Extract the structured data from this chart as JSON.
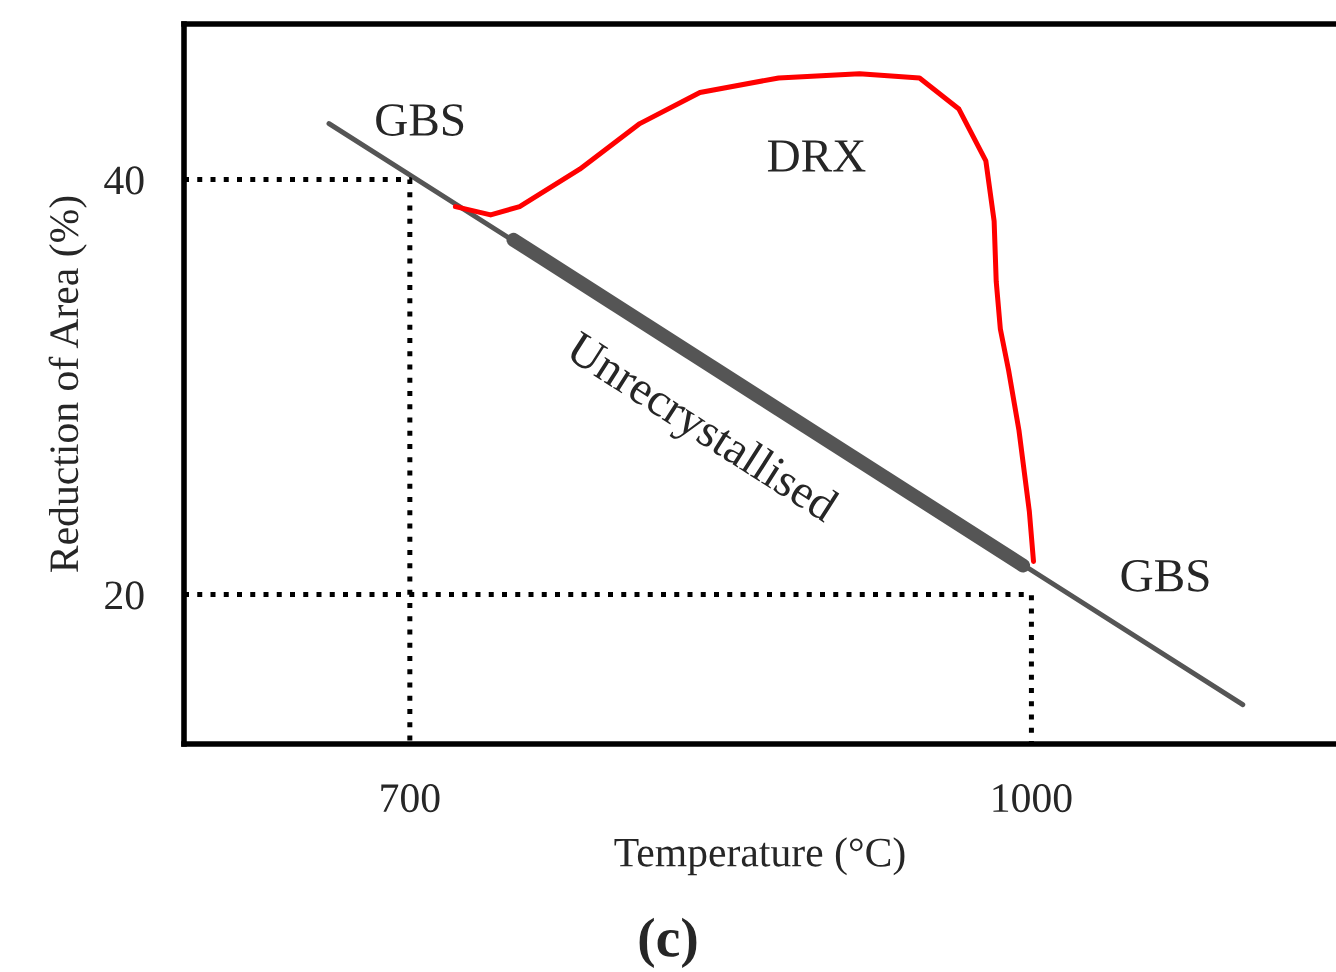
{
  "chart_data": {
    "type": "line",
    "xlabel": "Temperature (°C)",
    "ylabel": "Reduction of Area (%)",
    "xlim": [
      591,
      1147
    ],
    "ylim": [
      12.8,
      47.5
    ],
    "xticks": [
      700,
      1000
    ],
    "yticks": [
      20,
      40
    ],
    "grid": false,
    "legend": false,
    "series": [
      {
        "color": "#555555",
        "line_style": "solid",
        "x": [
          661,
          1102
        ],
        "values": [
          42.7,
          14.7
        ]
      },
      {
        "color": "#555555",
        "line_style": "solid",
        "x": [
          750,
          996
        ],
        "values": [
          37.1,
          21.4
        ]
      },
      {
        "color": "#ff0000",
        "line_style": "solid",
        "x": [
          722,
          739,
          753,
          782,
          811,
          840,
          878,
          917,
          946,
          965,
          978,
          982,
          983,
          985,
          989,
          994,
          999,
          1001
        ],
        "values": [
          38.7,
          38.3,
          38.7,
          40.5,
          42.7,
          44.2,
          44.9,
          45.1,
          44.9,
          43.4,
          40.9,
          38.0,
          35.1,
          32.8,
          30.8,
          27.9,
          24.0,
          21.6
        ]
      },
      {
        "color": "#000000",
        "line_style": "dotted",
        "x": [
          591,
          700,
          700
        ],
        "values": [
          40,
          40,
          12.8
        ]
      },
      {
        "color": "#000000",
        "line_style": "dotted",
        "x": [
          591,
          1000,
          1000
        ],
        "values": [
          20,
          20,
          12.8
        ]
      }
    ],
    "annotations": [
      "GBS",
      "DRX",
      "Unrecrystallised",
      "GBS",
      "(c)"
    ]
  }
}
